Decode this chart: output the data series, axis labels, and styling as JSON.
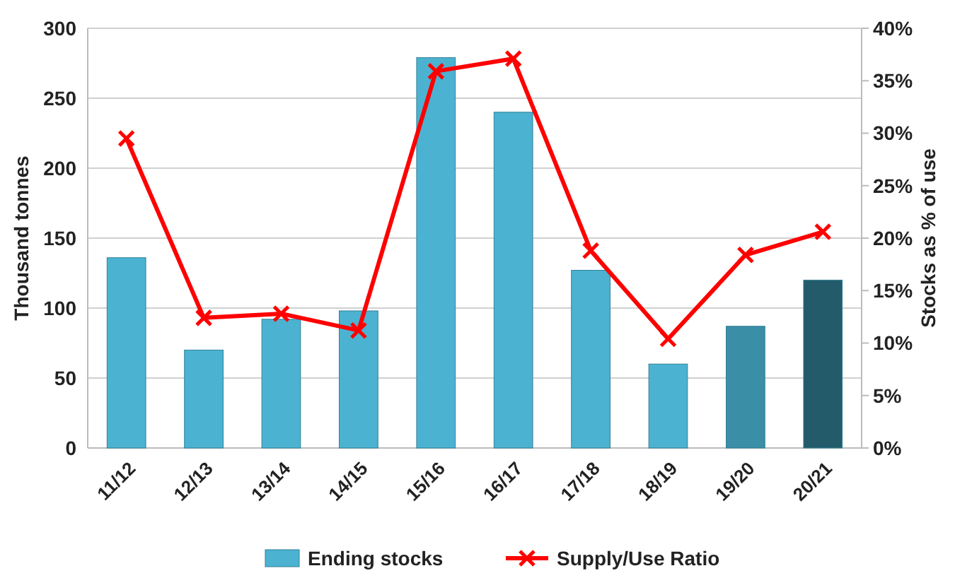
{
  "chart_data": {
    "type": "bar",
    "categories": [
      "11/12",
      "12/13",
      "13/14",
      "14/15",
      "15/16",
      "16/17",
      "17/18",
      "18/19",
      "19/20",
      "20/21"
    ],
    "ylabel": "Thousand tonnes",
    "y2label": "Stocks as % of use",
    "ylim": [
      0,
      300
    ],
    "yticks": [
      0,
      50,
      100,
      150,
      200,
      250,
      300
    ],
    "y2lim": [
      0,
      40
    ],
    "y2ticks": [
      {
        "value": 0,
        "label": "0%"
      },
      {
        "value": 5,
        "label": "5%"
      },
      {
        "value": 10,
        "label": "10%"
      },
      {
        "value": 15,
        "label": "15%"
      },
      {
        "value": 20,
        "label": "20%"
      },
      {
        "value": 25,
        "label": "25%"
      },
      {
        "value": 30,
        "label": "30%"
      },
      {
        "value": 35,
        "label": "35%"
      },
      {
        "value": 40,
        "label": "40%"
      }
    ],
    "grid": "y",
    "legend": "bottom",
    "series": [
      {
        "name": "Ending stocks",
        "color": "#4bb3d1",
        "colors": [
          "#4bb3d1",
          "#4bb3d1",
          "#4bb3d1",
          "#4bb3d1",
          "#4bb3d1",
          "#4bb3d1",
          "#4bb3d1",
          "#4bb3d1",
          "#3a8ea6",
          "#235b6a"
        ],
        "values": [
          136,
          70,
          92,
          98,
          279,
          240,
          127,
          60,
          87,
          120
        ]
      },
      {
        "name": "Supply/Use Ratio",
        "type": "line",
        "axis": "y2",
        "color": "#ff0000",
        "marker": "cross",
        "line_style": "solid",
        "values": [
          29.5,
          12.4,
          12.8,
          11.2,
          35.9,
          37.1,
          18.8,
          10.4,
          18.4,
          20.6
        ]
      }
    ]
  }
}
